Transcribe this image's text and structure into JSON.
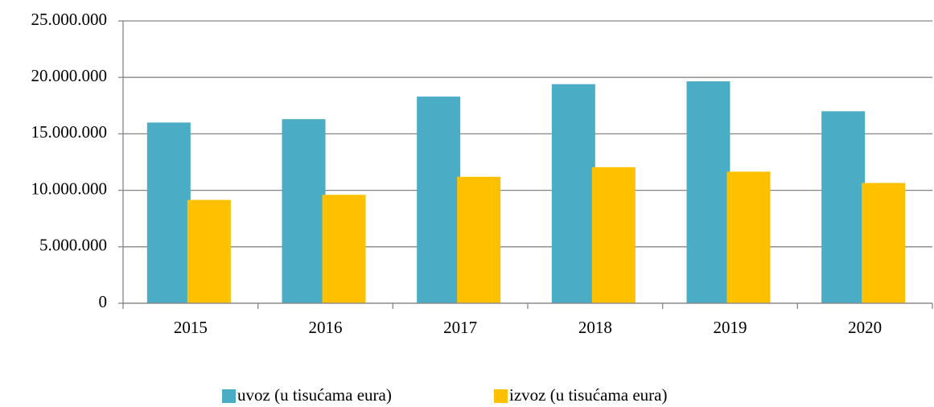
{
  "chart_data": {
    "type": "bar",
    "categories": [
      "2015",
      "2016",
      "2017",
      "2018",
      "2019",
      "2020"
    ],
    "series": [
      {
        "name": "uvoz (u tisućama eura)",
        "color": "#4bacc6",
        "values": [
          16000000,
          16300000,
          18300000,
          19400000,
          19650000,
          17000000
        ]
      },
      {
        "name": "izvoz (u tisućama eura)",
        "color": "#ffc000",
        "values": [
          9150000,
          9600000,
          11200000,
          12050000,
          11650000,
          10650000
        ]
      }
    ],
    "ylim": [
      0,
      25000000
    ],
    "yticks": [
      0,
      {
        "value": 5000000,
        "label": "5.000.000"
      },
      {
        "value": 10000000,
        "label": "10.000.000"
      },
      {
        "value": 15000000,
        "label": "15.000.000"
      },
      {
        "value": 20000000,
        "label": "20.000.000"
      },
      {
        "value": 25000000,
        "label": "25.000.000"
      }
    ],
    "grid": true,
    "legend": "bottom"
  }
}
